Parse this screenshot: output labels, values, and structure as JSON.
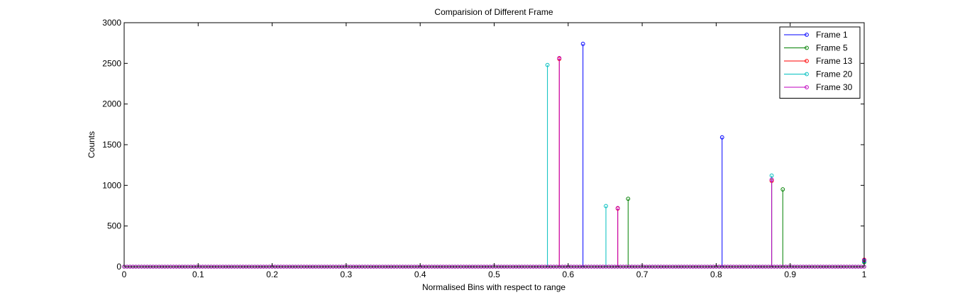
{
  "chart_data": {
    "type": "stem",
    "title": "Comparision of Different Frame",
    "xlabel": "Normalised Bins with respect to range",
    "ylabel": "Counts",
    "xlim": [
      0,
      1
    ],
    "ylim": [
      0,
      3000
    ],
    "xticks": [
      "0",
      "0.1",
      "0.2",
      "0.3",
      "0.4",
      "0.5",
      "0.6",
      "0.7",
      "0.8",
      "0.9",
      "1"
    ],
    "yticks": [
      "0",
      "500",
      "1000",
      "1500",
      "2000",
      "2500",
      "3000"
    ],
    "grid": false,
    "legend_position": "top-right",
    "baseline_bins": 256,
    "series": [
      {
        "name": "Frame 1",
        "color": "#0000ff",
        "points": [
          [
            0.62,
            2740
          ],
          [
            0.808,
            1590
          ],
          [
            1.0,
            70
          ]
        ]
      },
      {
        "name": "Frame 5",
        "color": "#008000",
        "points": [
          [
            0.681,
            835
          ],
          [
            0.89,
            950
          ],
          [
            1.0,
            55
          ]
        ]
      },
      {
        "name": "Frame 13",
        "color": "#ff0000",
        "points": [
          [
            0.588,
            2555
          ],
          [
            0.667,
            715
          ],
          [
            0.875,
            1055
          ],
          [
            1.0,
            85
          ]
        ]
      },
      {
        "name": "Frame 20",
        "color": "#00bfbf",
        "points": [
          [
            0.572,
            2480
          ],
          [
            0.651,
            745
          ],
          [
            0.875,
            1120
          ],
          [
            1.0,
            65
          ]
        ]
      },
      {
        "name": "Frame 30",
        "color": "#bf00bf",
        "points": [
          [
            0.588,
            2565
          ],
          [
            0.667,
            720
          ],
          [
            0.875,
            1070
          ],
          [
            1.0,
            80
          ]
        ]
      }
    ]
  }
}
